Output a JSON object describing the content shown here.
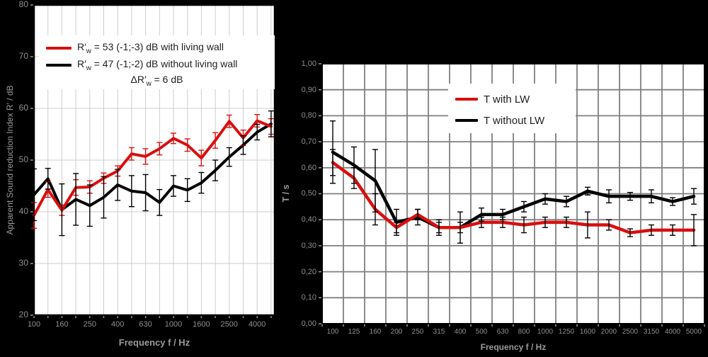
{
  "background": "#000000",
  "accent_red": "#d90f0f",
  "chart_data": [
    {
      "type": "line",
      "id": "apparent-sound-reduction",
      "ylabel": "Apparent Sound reduction Index R′ / dB",
      "xlabel": "Frequency f / Hz",
      "ylim": [
        20,
        80
      ],
      "grid": true,
      "legend_position": "top-inside",
      "categories": [
        100,
        125,
        160,
        200,
        250,
        315,
        400,
        500,
        630,
        800,
        1000,
        1250,
        1600,
        2000,
        2500,
        3150,
        4000,
        5000
      ],
      "yticks": [
        {
          "v": 20,
          "label": "20"
        },
        {
          "v": 30,
          "label": "30"
        },
        {
          "v": 40,
          "label": "40"
        },
        {
          "v": 50,
          "label": "50"
        },
        {
          "v": 60,
          "label": "60"
        },
        {
          "v": 70,
          "label": "70"
        },
        {
          "v": 80,
          "label": "80"
        }
      ],
      "xticks": [
        {
          "i": 0,
          "label": "100"
        },
        {
          "i": 2,
          "label": "160"
        },
        {
          "i": 4,
          "label": "250"
        },
        {
          "i": 6,
          "label": "400"
        },
        {
          "i": 8,
          "label": "630"
        },
        {
          "i": 10,
          "label": "1000"
        },
        {
          "i": 12,
          "label": "1600"
        },
        {
          "i": 14,
          "label": "2500"
        },
        {
          "i": 16,
          "label": "4000"
        }
      ],
      "series": [
        {
          "name": "R'w = 53 dB with living wall",
          "color": "#d90f0f",
          "error_color": "#d90f0f",
          "values": [
            39.3,
            44.3,
            40.3,
            44.7,
            44.8,
            46.5,
            47.9,
            51.2,
            50.7,
            52.2,
            54.2,
            52.9,
            50.4,
            53.8,
            57.5,
            54.3,
            57.6,
            56.5
          ],
          "errors": [
            2.5,
            1.5,
            1.0,
            1.5,
            1.2,
            1.0,
            1.0,
            1.2,
            1.5,
            1.2,
            1.0,
            1.2,
            1.5,
            1.5,
            1.2,
            1.5,
            1.2,
            1.5
          ]
        },
        {
          "name": "R'w = 47 dB without living wall",
          "color": "#000000",
          "error_color": "#000000",
          "values": [
            43.3,
            46.4,
            40.4,
            42.4,
            41.2,
            42.8,
            45.2,
            44.0,
            43.7,
            41.8,
            45.0,
            44.2,
            45.6,
            48.0,
            50.6,
            52.9,
            55.4,
            57.0
          ],
          "errors": [
            5.0,
            2.0,
            5.0,
            5.0,
            4.0,
            4.0,
            3.0,
            3.0,
            3.5,
            2.5,
            2.0,
            2.2,
            2.0,
            2.0,
            1.8,
            1.8,
            1.5,
            2.5
          ]
        }
      ],
      "legend": {
        "entries": [
          {
            "swatch": "#d90f0f",
            "pre": "R′",
            "sub": "w",
            "post": " = 53 (-1;-3) dB with living wall"
          },
          {
            "swatch": "#000000",
            "pre": "R′",
            "sub": "w",
            "post": " = 47 (-1;-2) dB without living wall"
          }
        ],
        "note": {
          "pre": "ΔR′",
          "sub": "w",
          "post": " = 6 dB"
        }
      }
    },
    {
      "type": "line",
      "id": "reverberation-time",
      "ylabel": "T / s",
      "xlabel": "Frequency f / Hz",
      "ylim": [
        0,
        1
      ],
      "grid": true,
      "legend_position": "top-inside",
      "categories": [
        100,
        125,
        160,
        200,
        250,
        315,
        400,
        500,
        630,
        800,
        1000,
        1250,
        1600,
        2000,
        2500,
        3150,
        4000,
        5000
      ],
      "yticks": [
        {
          "v": 0.0,
          "label": "0,00"
        },
        {
          "v": 0.1,
          "label": "0,10"
        },
        {
          "v": 0.2,
          "label": "0,20"
        },
        {
          "v": 0.3,
          "label": "0,30"
        },
        {
          "v": 0.4,
          "label": "0,40"
        },
        {
          "v": 0.5,
          "label": "0,50"
        },
        {
          "v": 0.6,
          "label": "0,60"
        },
        {
          "v": 0.7,
          "label": "0,70"
        },
        {
          "v": 0.8,
          "label": "0,80"
        },
        {
          "v": 0.9,
          "label": "0,90"
        },
        {
          "v": 1.0,
          "label": "1,00"
        }
      ],
      "xticks": [
        {
          "i": 0,
          "label": "100"
        },
        {
          "i": 1,
          "label": "125"
        },
        {
          "i": 2,
          "label": "160"
        },
        {
          "i": 3,
          "label": "200"
        },
        {
          "i": 4,
          "label": "250"
        },
        {
          "i": 5,
          "label": "315"
        },
        {
          "i": 6,
          "label": "400"
        },
        {
          "i": 7,
          "label": "500"
        },
        {
          "i": 8,
          "label": "630"
        },
        {
          "i": 9,
          "label": "800"
        },
        {
          "i": 10,
          "label": "1000"
        },
        {
          "i": 11,
          "label": "1250"
        },
        {
          "i": 12,
          "label": "1600"
        },
        {
          "i": 13,
          "label": "2000"
        },
        {
          "i": 14,
          "label": "2500"
        },
        {
          "i": 15,
          "label": "3150"
        },
        {
          "i": 16,
          "label": "4000"
        },
        {
          "i": 17,
          "label": "5000"
        }
      ],
      "series": [
        {
          "name": "T with LW",
          "color": "#d90f0f",
          "error_color": "#000000",
          "values": [
            0.62,
            0.56,
            0.44,
            0.37,
            0.42,
            0.37,
            0.37,
            0.39,
            0.39,
            0.38,
            0.39,
            0.39,
            0.38,
            0.38,
            0.35,
            0.36,
            0.36,
            0.36
          ],
          "errors": [
            0.05,
            0.04,
            0.06,
            0.02,
            0.02,
            0.02,
            0.02,
            0.02,
            0.02,
            0.03,
            0.02,
            0.02,
            0.05,
            0.02,
            0.015,
            0.02,
            0.02,
            0.06
          ]
        },
        {
          "name": "T without LW",
          "color": "#000000",
          "error_color": "#000000",
          "values": [
            0.66,
            0.61,
            0.55,
            0.39,
            0.41,
            0.37,
            0.37,
            0.42,
            0.42,
            0.45,
            0.48,
            0.47,
            0.51,
            0.49,
            0.49,
            0.49,
            0.47,
            0.49
          ],
          "errors": [
            0.12,
            0.07,
            0.12,
            0.05,
            0.03,
            0.03,
            0.06,
            0.025,
            0.02,
            0.02,
            0.02,
            0.02,
            0.015,
            0.025,
            0.015,
            0.025,
            0.015,
            0.03
          ]
        }
      ],
      "legend": {
        "entries": [
          {
            "swatch": "#d90f0f",
            "pre": "T with LW"
          },
          {
            "swatch": "#000000",
            "pre": "T without LW"
          }
        ]
      }
    }
  ]
}
